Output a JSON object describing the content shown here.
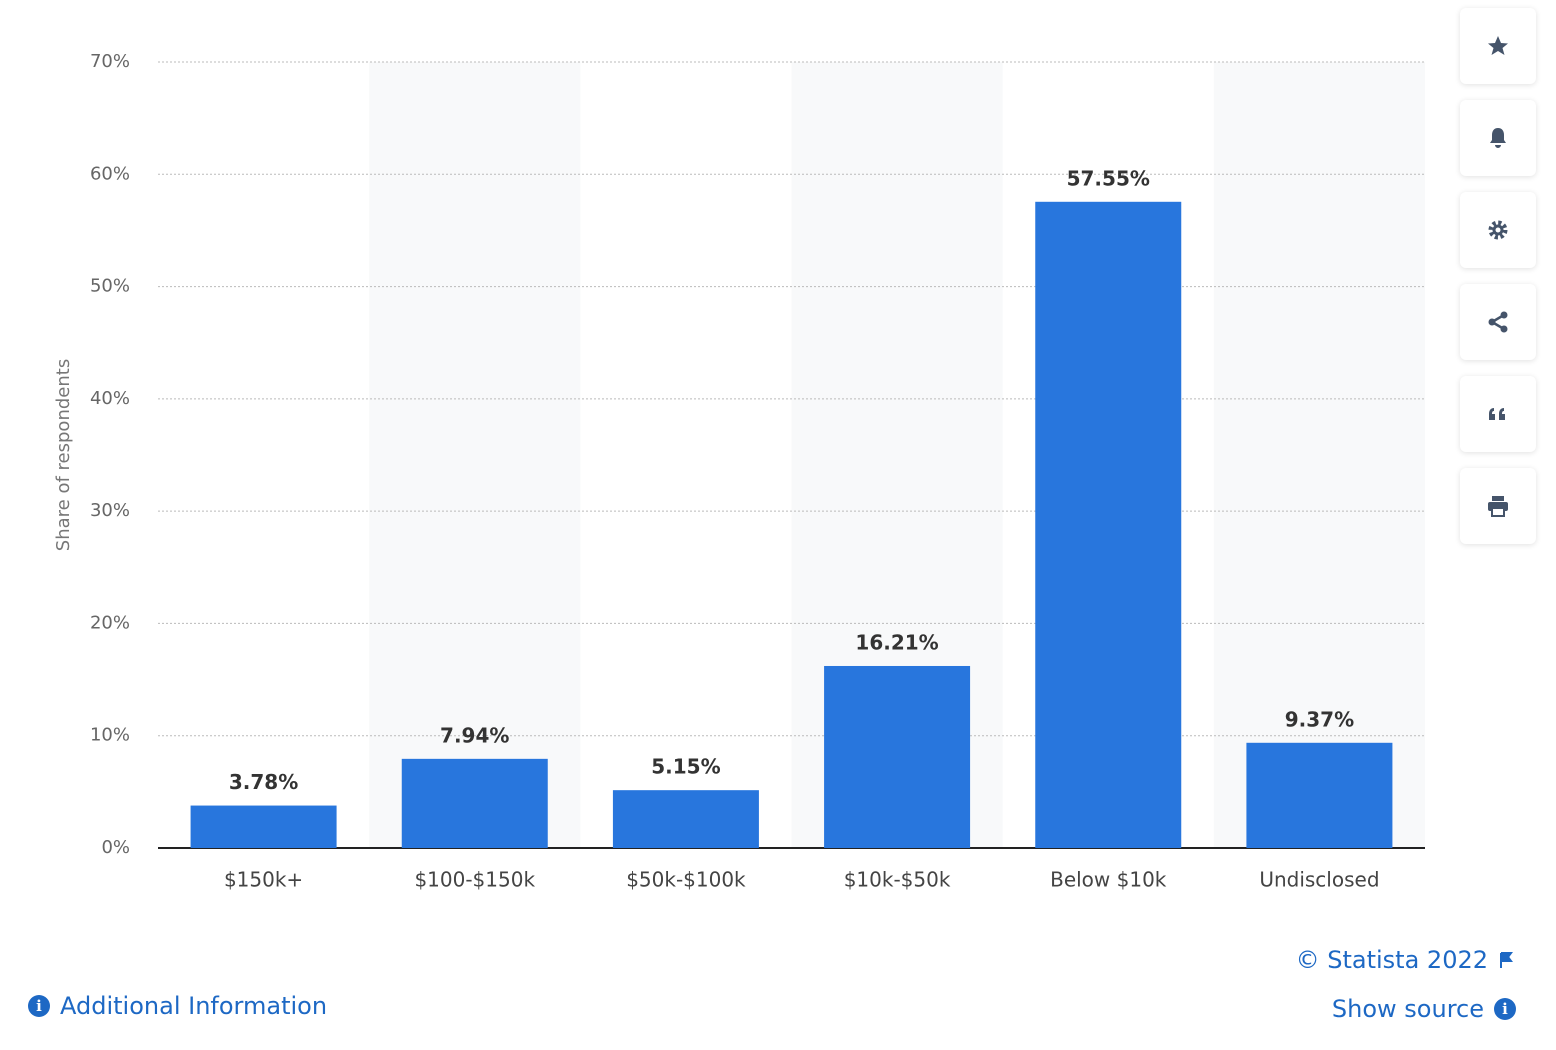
{
  "chart_data": {
    "type": "bar",
    "y_label": "Share of respondents",
    "categories": [
      "$150k+",
      "$100-$150k",
      "$50k-$100k",
      "$10k-$50k",
      "Below $10k",
      "Undisclosed"
    ],
    "values": [
      3.78,
      7.94,
      5.15,
      16.21,
      57.55,
      9.37
    ],
    "value_labels": [
      "3.78%",
      "7.94%",
      "5.15%",
      "16.21%",
      "57.55%",
      "9.37%"
    ],
    "color": "#2876dd",
    "ylim": [
      0,
      70
    ],
    "yticks": [
      {
        "value": 0,
        "label": "0%"
      },
      {
        "value": 10,
        "label": "10%"
      },
      {
        "value": 20,
        "label": "20%"
      },
      {
        "value": 30,
        "label": "30%"
      },
      {
        "value": 40,
        "label": "40%"
      },
      {
        "value": 50,
        "label": "50%"
      },
      {
        "value": 60,
        "label": "60%"
      },
      {
        "value": 70,
        "label": "70%"
      }
    ],
    "grid": true
  },
  "footer": {
    "copyright": "© Statista 2022",
    "source": "Show source",
    "info": "Additional Information"
  }
}
